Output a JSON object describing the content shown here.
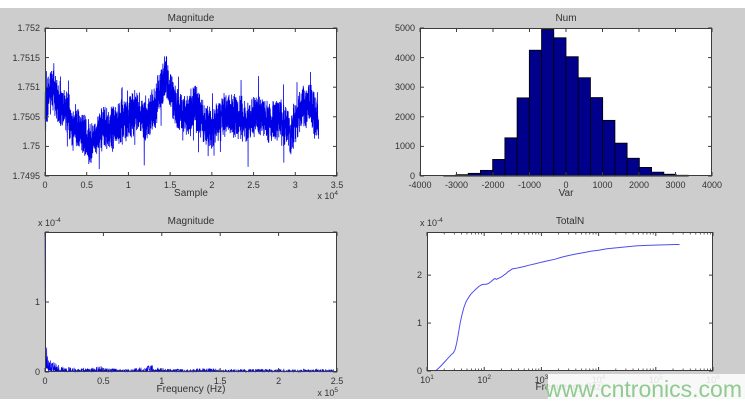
{
  "watermark": {
    "text": "www.cntronics.com",
    "color": "#90ca90"
  },
  "style": {
    "figure_bg": "#cdcdcd",
    "plot_bg": "#ffffff",
    "axis_color": "#3c3c3c",
    "text_color": "#333333",
    "signal_blue": "#0000e6",
    "hist_fill": "#00008b",
    "hist_stroke": "#000000",
    "curve_blue": "#4d4dee"
  },
  "chart_data": [
    {
      "id": "mag-time",
      "type": "line",
      "title": "Magnitude",
      "xlabel": "Sample",
      "ylabel": "",
      "x_exp": {
        "base": "x 10",
        "sup": "4"
      },
      "xlim": [
        0,
        3.5
      ],
      "ylim": [
        1.7495,
        1.752
      ],
      "xticks": [
        {
          "v": 0,
          "l": "0"
        },
        {
          "v": 0.5,
          "l": "0.5"
        },
        {
          "v": 1,
          "l": "1"
        },
        {
          "v": 1.5,
          "l": "1.5"
        },
        {
          "v": 2,
          "l": "2"
        },
        {
          "v": 2.5,
          "l": "2.5"
        },
        {
          "v": 3,
          "l": "3"
        },
        {
          "v": 3.5,
          "l": "3.5"
        }
      ],
      "yticks": [
        {
          "v": 1.7495,
          "l": "1.7495"
        },
        {
          "v": 1.75,
          "l": "1.75"
        },
        {
          "v": 1.7505,
          "l": "1.7505"
        },
        {
          "v": 1.751,
          "l": "1.751"
        },
        {
          "v": 1.7515,
          "l": "1.7515"
        },
        {
          "v": 1.752,
          "l": "1.752"
        }
      ],
      "x_units": "samples x10^4",
      "x_end": 3.28,
      "noise_amp": 0.00042,
      "n_points": 3200,
      "trend": [
        [
          0.0,
          1.7505
        ],
        [
          0.03,
          1.7508
        ],
        [
          0.08,
          1.751
        ],
        [
          0.12,
          1.7509
        ],
        [
          0.18,
          1.7507
        ],
        [
          0.25,
          1.7506
        ],
        [
          0.32,
          1.7504
        ],
        [
          0.4,
          1.7503
        ],
        [
          0.48,
          1.7502
        ],
        [
          0.55,
          1.75
        ],
        [
          0.62,
          1.7502
        ],
        [
          0.7,
          1.7503
        ],
        [
          0.8,
          1.7503
        ],
        [
          0.9,
          1.7504
        ],
        [
          1.0,
          1.7505
        ],
        [
          1.1,
          1.7506
        ],
        [
          1.2,
          1.7504
        ],
        [
          1.3,
          1.7506
        ],
        [
          1.4,
          1.751
        ],
        [
          1.45,
          1.7512
        ],
        [
          1.5,
          1.751
        ],
        [
          1.55,
          1.7507
        ],
        [
          1.62,
          1.7506
        ],
        [
          1.7,
          1.7505
        ],
        [
          1.8,
          1.7507
        ],
        [
          1.9,
          1.7504
        ],
        [
          2.0,
          1.7503
        ],
        [
          2.1,
          1.7505
        ],
        [
          2.2,
          1.7506
        ],
        [
          2.3,
          1.7505
        ],
        [
          2.4,
          1.7504
        ],
        [
          2.5,
          1.7505
        ],
        [
          2.6,
          1.7505
        ],
        [
          2.7,
          1.7504
        ],
        [
          2.8,
          1.7505
        ],
        [
          2.9,
          1.7503
        ],
        [
          2.95,
          1.7502
        ],
        [
          3.0,
          1.7504
        ],
        [
          3.1,
          1.7507
        ],
        [
          3.18,
          1.7507
        ],
        [
          3.24,
          1.7505
        ],
        [
          3.28,
          1.7504
        ]
      ]
    },
    {
      "id": "hist",
      "type": "bar",
      "title": "Num",
      "xlabel": "Var",
      "ylabel": "",
      "xlim": [
        -4000,
        4000
      ],
      "ylim": [
        0,
        5000
      ],
      "xticks": [
        {
          "v": -4000,
          "l": "-4000"
        },
        {
          "v": -3000,
          "l": "-3000"
        },
        {
          "v": -2000,
          "l": "-2000"
        },
        {
          "v": -1000,
          "l": "-1000"
        },
        {
          "v": 0,
          "l": "0"
        },
        {
          "v": 1000,
          "l": "1000"
        },
        {
          "v": 2000,
          "l": "2000"
        },
        {
          "v": 3000,
          "l": "3000"
        },
        {
          "v": 4000,
          "l": "4000"
        }
      ],
      "yticks": [
        {
          "v": 0,
          "l": "0"
        },
        {
          "v": 1000,
          "l": "1000"
        },
        {
          "v": 2000,
          "l": "2000"
        },
        {
          "v": 3000,
          "l": "3000"
        },
        {
          "v": 4000,
          "l": "4000"
        },
        {
          "v": 5000,
          "l": "5000"
        }
      ],
      "bin_start": -3350,
      "bin_width": 335,
      "values": [
        20,
        45,
        90,
        190,
        560,
        1290,
        2640,
        4250,
        4950,
        4670,
        4030,
        3320,
        2650,
        1880,
        1110,
        600,
        290,
        130,
        60,
        25
      ]
    },
    {
      "id": "mag-freq",
      "type": "spectrum",
      "title": "Magnitude",
      "xlabel": "Frequency (Hz)",
      "ylabel": "",
      "y_exp": {
        "base": "x 10",
        "sup": "-4"
      },
      "x_exp": {
        "base": "x 10",
        "sup": "5"
      },
      "xlim": [
        0,
        2.5
      ],
      "ylim": [
        0,
        2
      ],
      "xticks": [
        {
          "v": 0,
          "l": "0"
        },
        {
          "v": 0.5,
          "l": "0.5"
        },
        {
          "v": 1,
          "l": "1"
        },
        {
          "v": 1.5,
          "l": "1.5"
        },
        {
          "v": 2,
          "l": "2"
        },
        {
          "v": 2.5,
          "l": "2.5"
        }
      ],
      "yticks": [
        {
          "v": 0,
          "l": "0"
        },
        {
          "v": 1,
          "l": "1"
        },
        {
          "v": 2,
          "l": ""
        }
      ],
      "x_units": "Hz x10^5",
      "x_end": 2.47,
      "n_points": 1500,
      "envelope": [
        [
          0,
          1.97
        ],
        [
          0.004,
          1.5
        ],
        [
          0.008,
          0.8
        ],
        [
          0.012,
          0.5
        ],
        [
          0.02,
          0.34
        ],
        [
          0.03,
          0.26
        ],
        [
          0.05,
          0.19
        ],
        [
          0.07,
          0.15
        ],
        [
          0.1,
          0.11
        ],
        [
          0.15,
          0.085
        ],
        [
          0.2,
          0.07
        ],
        [
          0.3,
          0.055
        ],
        [
          0.42,
          0.055
        ],
        [
          0.47,
          0.1
        ],
        [
          0.5,
          0.06
        ],
        [
          0.6,
          0.05
        ],
        [
          0.75,
          0.05
        ],
        [
          0.92,
          0.1
        ],
        [
          0.97,
          0.06
        ],
        [
          1.1,
          0.045
        ],
        [
          1.25,
          0.04
        ],
        [
          1.4,
          0.06
        ],
        [
          1.5,
          0.04
        ],
        [
          1.7,
          0.04
        ],
        [
          1.9,
          0.045
        ],
        [
          2.1,
          0.04
        ],
        [
          2.3,
          0.04
        ],
        [
          2.47,
          0.04
        ]
      ]
    },
    {
      "id": "totaln",
      "type": "logline",
      "title": "TotalN",
      "xlabel": "Frequency (Hz)",
      "ylabel": "",
      "y_exp": {
        "base": "x 10",
        "sup": "-4"
      },
      "xlim_exp": [
        1,
        6
      ],
      "ylim": [
        0,
        2.9
      ],
      "xticks": [
        {
          "v": 1,
          "base": "10",
          "sup": "1"
        },
        {
          "v": 2,
          "base": "10",
          "sup": "2"
        },
        {
          "v": 3,
          "base": "10",
          "sup": "3"
        },
        {
          "v": 4,
          "base": "10",
          "sup": "4"
        },
        {
          "v": 5,
          "base": "10",
          "sup": "5"
        },
        {
          "v": 6,
          "base": "10",
          "sup": "6"
        }
      ],
      "yticks": [
        {
          "v": 0,
          "l": "0"
        },
        {
          "v": 1,
          "l": "1"
        },
        {
          "v": 2,
          "l": "2"
        }
      ],
      "points": [
        [
          14,
          0
        ],
        [
          16,
          0.06
        ],
        [
          18,
          0.12
        ],
        [
          20,
          0.18
        ],
        [
          23,
          0.26
        ],
        [
          26,
          0.33
        ],
        [
          29,
          0.38
        ],
        [
          31,
          0.45
        ],
        [
          33,
          0.58
        ],
        [
          35,
          0.75
        ],
        [
          38,
          1.0
        ],
        [
          41,
          1.18
        ],
        [
          44,
          1.32
        ],
        [
          48,
          1.44
        ],
        [
          53,
          1.53
        ],
        [
          58,
          1.6
        ],
        [
          65,
          1.66
        ],
        [
          72,
          1.71
        ],
        [
          80,
          1.76
        ],
        [
          90,
          1.8
        ],
        [
          100,
          1.81
        ],
        [
          110,
          1.81
        ],
        [
          120,
          1.83
        ],
        [
          133,
          1.87
        ],
        [
          145,
          1.91
        ],
        [
          155,
          1.93
        ],
        [
          163,
          1.91
        ],
        [
          175,
          1.93
        ],
        [
          190,
          1.95
        ],
        [
          205,
          1.97
        ],
        [
          220,
          2.0
        ],
        [
          240,
          2.03
        ],
        [
          260,
          2.07
        ],
        [
          285,
          2.1
        ],
        [
          310,
          2.13
        ],
        [
          350,
          2.14
        ],
        [
          420,
          2.16
        ],
        [
          500,
          2.18
        ],
        [
          620,
          2.21
        ],
        [
          800,
          2.24
        ],
        [
          1000,
          2.27
        ],
        [
          1300,
          2.3
        ],
        [
          1700,
          2.33
        ],
        [
          2200,
          2.37
        ],
        [
          3000,
          2.41
        ],
        [
          4000,
          2.44
        ],
        [
          5500,
          2.47
        ],
        [
          7500,
          2.5
        ],
        [
          10000,
          2.52
        ],
        [
          14000,
          2.55
        ],
        [
          20000,
          2.57
        ],
        [
          30000,
          2.59
        ],
        [
          45000,
          2.61
        ],
        [
          70000,
          2.62
        ],
        [
          110000,
          2.63
        ],
        [
          160000,
          2.635
        ],
        [
          220000,
          2.64
        ],
        [
          260000,
          2.64
        ]
      ]
    }
  ]
}
